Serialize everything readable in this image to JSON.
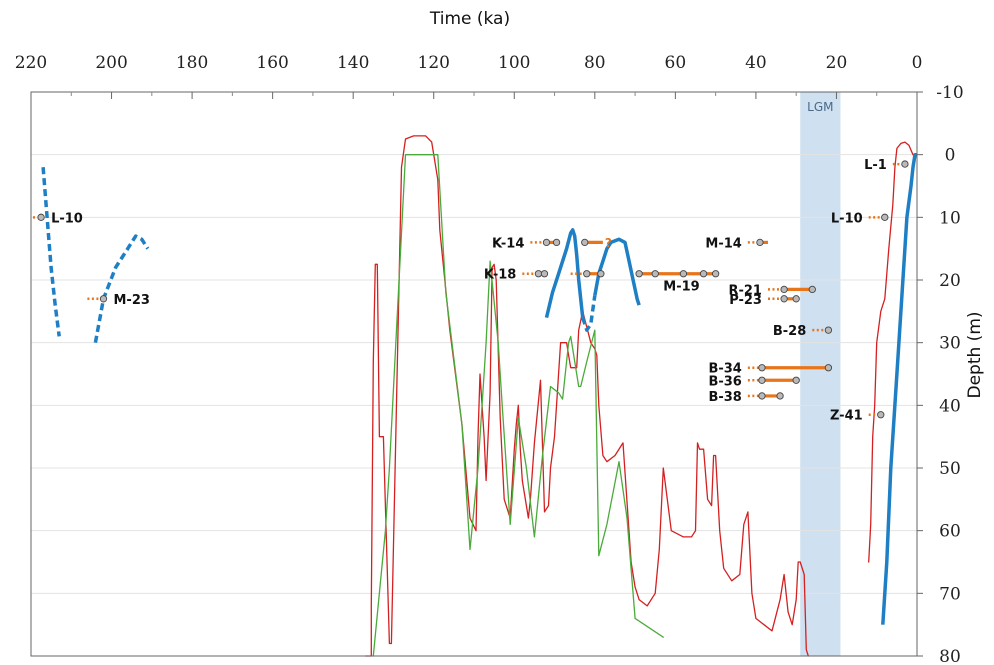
{
  "chart_data": {
    "type": "line",
    "xlabel": "Time (ka)",
    "ylabel": "Depth (m)",
    "xlim": [
      220,
      0
    ],
    "ylim": [
      -10,
      80
    ],
    "x_ticks": [
      220,
      200,
      180,
      160,
      140,
      120,
      100,
      80,
      60,
      40,
      20,
      0
    ],
    "y_ticks": [
      -10,
      0,
      10,
      20,
      30,
      40,
      50,
      60,
      70,
      80
    ],
    "x_axis_position": "top",
    "y_axis_position": "right",
    "grid": "horizontal",
    "colors": {
      "sea_level_red": "#d42020",
      "sea_level_green": "#4aaa3a",
      "curve_blue": "#1e7fc4",
      "sample_orange": "#e8751a",
      "lgm_band": "#cfe0f0",
      "grid": "#e3e3e3"
    },
    "lgm": {
      "label": "LGM",
      "from": 29,
      "to": 19
    },
    "series": [
      {
        "color": "red",
        "points": [
          [
            137,
            80
          ],
          [
            135.5,
            80
          ],
          [
            135.5,
            72
          ],
          [
            135,
            33
          ],
          [
            134.5,
            17.5
          ],
          [
            134,
            17.5
          ],
          [
            133.5,
            45
          ],
          [
            132.5,
            45
          ],
          [
            131,
            78
          ],
          [
            130.5,
            78
          ],
          [
            128,
            2
          ],
          [
            127,
            -2.5
          ],
          [
            125,
            -3
          ],
          [
            122,
            -3
          ],
          [
            120.5,
            -2
          ],
          [
            119,
            4
          ],
          [
            118.5,
            12
          ],
          [
            116,
            28
          ],
          [
            113,
            43
          ],
          [
            111,
            58
          ],
          [
            109.5,
            60
          ],
          [
            109,
            45
          ],
          [
            108.5,
            35
          ],
          [
            107.5,
            45
          ],
          [
            107,
            52
          ],
          [
            106,
            38
          ],
          [
            105.5,
            18
          ],
          [
            105,
            17.5
          ],
          [
            104.5,
            20
          ],
          [
            103.5,
            42
          ],
          [
            102.5,
            55
          ],
          [
            101,
            58
          ],
          [
            100,
            47
          ],
          [
            99.5,
            43
          ],
          [
            99,
            40
          ],
          [
            98.5,
            47
          ],
          [
            98,
            52
          ],
          [
            96.5,
            58
          ],
          [
            96,
            55
          ],
          [
            95,
            46
          ],
          [
            93.5,
            36
          ],
          [
            92.5,
            57
          ],
          [
            91.5,
            56
          ],
          [
            91,
            50
          ],
          [
            90,
            45
          ],
          [
            88.5,
            30
          ],
          [
            87,
            30
          ],
          [
            86.5,
            32
          ],
          [
            86,
            34
          ],
          [
            84.5,
            34
          ],
          [
            84,
            28
          ],
          [
            83,
            25
          ],
          [
            81,
            30
          ],
          [
            80,
            31
          ],
          [
            79.5,
            32
          ],
          [
            79,
            40
          ],
          [
            78,
            48
          ],
          [
            77,
            49
          ],
          [
            75,
            48
          ],
          [
            73,
            46
          ],
          [
            71,
            65
          ],
          [
            70,
            69
          ],
          [
            69,
            71
          ],
          [
            67,
            72
          ],
          [
            65,
            70
          ],
          [
            64,
            63
          ],
          [
            63,
            50
          ],
          [
            62,
            55
          ],
          [
            61,
            60
          ],
          [
            58,
            61
          ],
          [
            56,
            61
          ],
          [
            55,
            60
          ],
          [
            54.5,
            46
          ],
          [
            54,
            47
          ],
          [
            53,
            47
          ],
          [
            52,
            55
          ],
          [
            51,
            56
          ],
          [
            50.5,
            48
          ],
          [
            50,
            48
          ],
          [
            49,
            60
          ],
          [
            48,
            66
          ],
          [
            46,
            68
          ],
          [
            44,
            67
          ],
          [
            43,
            59
          ],
          [
            42,
            57
          ],
          [
            41,
            70
          ],
          [
            40,
            74
          ],
          [
            38,
            75
          ],
          [
            36,
            76
          ],
          [
            34,
            71
          ],
          [
            33,
            67
          ],
          [
            32,
            73
          ],
          [
            31,
            75
          ],
          [
            30,
            71
          ],
          [
            29.5,
            65
          ],
          [
            29,
            65
          ],
          [
            28,
            67
          ],
          [
            27.5,
            79
          ],
          [
            27,
            80
          ]
        ]
      },
      {
        "color": "red",
        "points": [
          [
            12,
            65
          ],
          [
            11.5,
            59
          ],
          [
            11,
            45
          ],
          [
            10.5,
            40
          ],
          [
            10,
            30
          ],
          [
            9,
            25
          ],
          [
            8,
            23
          ],
          [
            7,
            15
          ],
          [
            6,
            8
          ],
          [
            5.5,
            2
          ],
          [
            5,
            -1
          ],
          [
            4,
            -1.8
          ],
          [
            3,
            -2
          ],
          [
            2,
            -1.5
          ],
          [
            1,
            0
          ],
          [
            0.5,
            0
          ]
        ]
      },
      {
        "color": "green",
        "points": [
          [
            135,
            80
          ],
          [
            132,
            60
          ],
          [
            131,
            50
          ],
          [
            127,
            0
          ],
          [
            119,
            0
          ],
          [
            117,
            22
          ],
          [
            113,
            43
          ],
          [
            111,
            63
          ],
          [
            109,
            50
          ],
          [
            107,
            30
          ],
          [
            106,
            17
          ],
          [
            104,
            30
          ],
          [
            103,
            40
          ],
          [
            101,
            59
          ],
          [
            99,
            42
          ],
          [
            97,
            50
          ],
          [
            95,
            61
          ],
          [
            93,
            48
          ],
          [
            91,
            37
          ],
          [
            89,
            38
          ],
          [
            88,
            39
          ],
          [
            86.5,
            30
          ],
          [
            86,
            29
          ],
          [
            84,
            37
          ],
          [
            83.5,
            37
          ],
          [
            82,
            33
          ],
          [
            80,
            28
          ],
          [
            79,
            64
          ],
          [
            77,
            59
          ],
          [
            74,
            49
          ],
          [
            72,
            58
          ],
          [
            70,
            74
          ],
          [
            63,
            77
          ]
        ]
      },
      {
        "color": "blue",
        "style": "dashed",
        "points": [
          [
            217,
            2
          ],
          [
            216,
            10
          ],
          [
            215,
            18
          ],
          [
            214,
            24
          ],
          [
            213,
            29
          ]
        ]
      },
      {
        "color": "blue",
        "style": "dashed",
        "points": [
          [
            204,
            30
          ],
          [
            202,
            23
          ],
          [
            199,
            18
          ],
          [
            196,
            15
          ],
          [
            194,
            13
          ],
          [
            192.5,
            13.5
          ],
          [
            191,
            15
          ]
        ]
      },
      {
        "color": "blue",
        "style": "solid",
        "points": [
          [
            92,
            26
          ],
          [
            90.5,
            22
          ],
          [
            89,
            19
          ],
          [
            88,
            17
          ],
          [
            87,
            15
          ],
          [
            86,
            12.5
          ],
          [
            85.5,
            12
          ],
          [
            85,
            13
          ],
          [
            84.5,
            16
          ],
          [
            84,
            20
          ],
          [
            83.5,
            23
          ],
          [
            83,
            26
          ]
        ]
      },
      {
        "color": "blue",
        "style": "dashed",
        "points": [
          [
            83,
            26
          ],
          [
            82,
            28
          ],
          [
            81,
            27
          ],
          [
            80,
            22.5
          ]
        ]
      },
      {
        "color": "blue",
        "style": "solid",
        "points": [
          [
            80,
            22.5
          ],
          [
            79,
            19
          ],
          [
            78,
            17
          ],
          [
            77,
            15
          ],
          [
            76,
            14
          ],
          [
            74,
            13.5
          ],
          [
            72.5,
            14
          ],
          [
            71.5,
            17
          ],
          [
            70.5,
            20
          ],
          [
            69.5,
            23
          ],
          [
            69,
            24
          ]
        ]
      },
      {
        "color": "blue",
        "style": "solid",
        "points": [
          [
            8.5,
            75
          ],
          [
            7.5,
            65
          ],
          [
            6.5,
            50
          ],
          [
            5,
            35
          ],
          [
            3.5,
            20
          ],
          [
            2.5,
            10
          ],
          [
            1.5,
            5
          ],
          [
            1,
            2
          ],
          [
            0.5,
            0
          ],
          [
            0,
            0
          ]
        ]
      }
    ],
    "samples": [
      {
        "label": "L-1",
        "depth": 1.5,
        "dotted": [
          6,
          3
        ],
        "solid": null,
        "circles": [
          3
        ]
      },
      {
        "label": "L-10",
        "depth": 10,
        "dotted": [
          219.5,
          217.5
        ],
        "solid": null,
        "circles": [
          217.5
        ]
      },
      {
        "label": "L-10",
        "depth": 10,
        "dotted": [
          12,
          8
        ],
        "solid": null,
        "circles": [
          8
        ]
      },
      {
        "label": "K-14",
        "depth": 14,
        "dotted": [
          96,
          92
        ],
        "solid": [
          92,
          89.5
        ],
        "circles": [
          92,
          89.5
        ]
      },
      {
        "label": "",
        "depth": 14,
        "dotted": null,
        "solid": [
          82.5,
          78
        ],
        "circles": [
          82.5
        ],
        "note": "?"
      },
      {
        "label": "M-14",
        "depth": 14,
        "dotted": [
          42,
          39
        ],
        "solid": [
          39,
          37
        ],
        "circles": [
          39
        ]
      },
      {
        "label": "K-18",
        "depth": 19,
        "dotted": [
          98,
          94
        ],
        "solid": [
          94,
          92
        ],
        "circles": [
          94,
          92.5
        ]
      },
      {
        "label": "",
        "depth": 19,
        "dotted": [
          86,
          82
        ],
        "solid": [
          82,
          78.5
        ],
        "circles": [
          82,
          78.5
        ]
      },
      {
        "label": "M-19",
        "depth": 19,
        "dotted": null,
        "solid": [
          69,
          50
        ],
        "circles": [
          69,
          65,
          58,
          53,
          50
        ]
      },
      {
        "label": "R-21",
        "depth": 21.5,
        "dotted": [
          37,
          33
        ],
        "solid": [
          33,
          26
        ],
        "circles": [
          33,
          26
        ]
      },
      {
        "label": "P-23",
        "depth": 23,
        "dotted": [
          37,
          33
        ],
        "solid": [
          33,
          30
        ],
        "circles": [
          33,
          30
        ]
      },
      {
        "label": "M-23",
        "depth": 23,
        "dotted": [
          206,
          202
        ],
        "solid": null,
        "circles": [
          202
        ]
      },
      {
        "label": "B-28",
        "depth": 28,
        "dotted": [
          26,
          22
        ],
        "solid": null,
        "circles": [
          22
        ]
      },
      {
        "label": "B-34",
        "depth": 34,
        "dotted": [
          42,
          38.5
        ],
        "solid": [
          38.5,
          22
        ],
        "circles": [
          38.5,
          22
        ]
      },
      {
        "label": "B-36",
        "depth": 36,
        "dotted": [
          42,
          38.5
        ],
        "solid": [
          38.5,
          30
        ],
        "circles": [
          38.5,
          30
        ]
      },
      {
        "label": "B-38",
        "depth": 38.5,
        "dotted": [
          42,
          38.5
        ],
        "solid": [
          38.5,
          34
        ],
        "circles": [
          38.5,
          34
        ]
      },
      {
        "label": "Z-41",
        "depth": 41.5,
        "dotted": [
          12,
          9
        ],
        "solid": null,
        "circles": [
          9
        ]
      }
    ]
  }
}
